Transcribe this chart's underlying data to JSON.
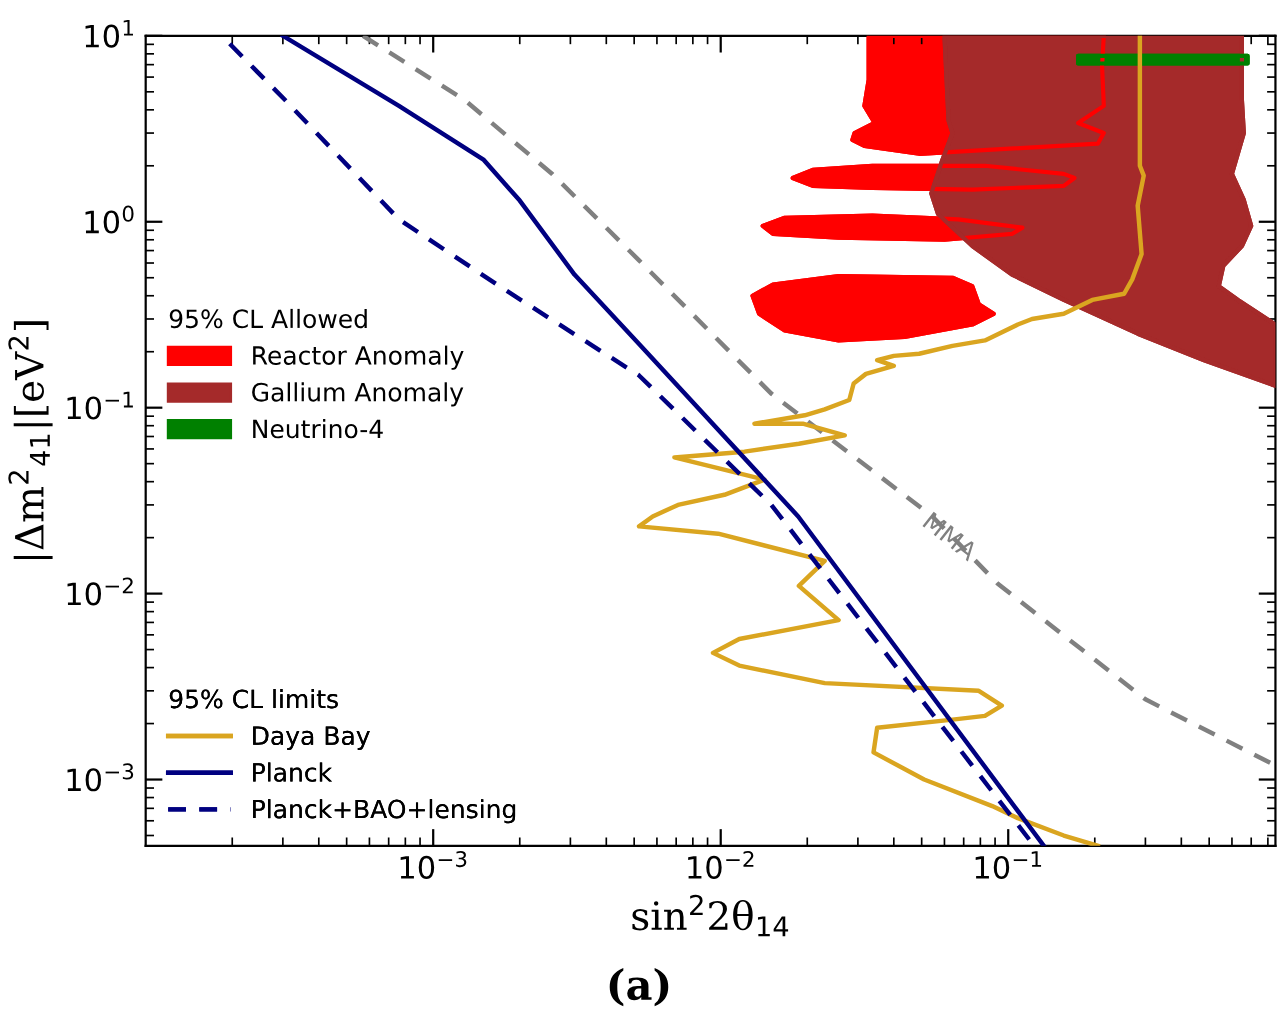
{
  "chart_data": {
    "type": "line",
    "xlabel": "sin$^{2}$2θ$_{14}$",
    "ylabel": "|Δm$^{2}$$_{41}$|[eV$^{2}$]",
    "log": "xy",
    "xlim": [
      0.0001,
      0.85
    ],
    "ylim": [
      0.00044,
      10
    ],
    "xticks": [
      {
        "value": 0.001,
        "label": "10$^{−3}$"
      },
      {
        "value": 0.01,
        "label": "10$^{−2}$"
      },
      {
        "value": 0.1,
        "label": "10$^{−1}$"
      }
    ],
    "yticks": [
      {
        "value": 0.001,
        "label": "10$^{−3}$"
      },
      {
        "value": 0.01,
        "label": "10$^{−2}$"
      },
      {
        "value": 0.1,
        "label": "10$^{−1}$"
      },
      {
        "value": 1,
        "label": "10$^{0}$"
      },
      {
        "value": 10,
        "label": "10$^{1}$"
      }
    ],
    "grid": false,
    "legend": "left",
    "legend_title": [
      "95% CL Allowed",
      "95% CL limits"
    ],
    "series": [
      {
        "name": "Reactor Anomaly",
        "type": "area",
        "color": "#ff0000",
        "x": [
          0.0327,
          0.0327,
          0.0316,
          0.0343,
          0.0292,
          0.0287,
          0.0316,
          0.049,
          0.205,
          0.215,
          0.175,
          0.215,
          0.212,
          0.215,
          null,
          0.0178,
          0.0209,
          0.0337,
          0.083,
          0.156,
          0.17,
          0.156,
          0.075,
          0.0337,
          0.0209,
          null,
          0.014,
          0.0167,
          0.0337,
          0.067,
          0.112,
          0.103,
          0.06,
          0.0257,
          0.0152,
          null,
          0.0129,
          0.0152,
          0.0257,
          0.064,
          0.075,
          0.079,
          0.089,
          0.075,
          0.0436,
          0.0257,
          0.0167,
          0.0136
        ],
        "values": [
          10,
          5.8,
          4.2,
          3.4,
          3.0,
          2.76,
          2.56,
          2.32,
          2.63,
          3.0,
          3.4,
          4.2,
          6.9,
          10,
          null,
          1.72,
          1.9,
          2.0,
          2.0,
          1.81,
          1.72,
          1.56,
          1.49,
          1.52,
          1.56,
          null,
          0.95,
          1.05,
          1.08,
          1.03,
          0.93,
          0.86,
          0.8,
          0.82,
          0.86,
          null,
          0.4,
          0.46,
          0.51,
          0.5,
          0.45,
          0.36,
          0.32,
          0.28,
          0.24,
          0.23,
          0.26,
          0.32
        ]
      },
      {
        "name": "Gallium Anomaly",
        "type": "area",
        "color": "#a52a2a",
        "x": [
          0.06,
          0.062,
          0.064,
          0.059,
          0.054,
          0.057,
          0.075,
          0.103,
          0.156,
          0.282,
          0.48,
          0.85,
          0.85,
          0.63,
          0.54,
          0.56,
          0.65,
          0.7,
          0.66,
          0.6,
          0.66,
          0.65,
          0.65
        ],
        "values": [
          10,
          3.5,
          3.0,
          2.15,
          1.42,
          1.1,
          0.74,
          0.52,
          0.38,
          0.25,
          0.18,
          0.131,
          0.28,
          0.38,
          0.45,
          0.58,
          0.74,
          0.95,
          1.31,
          1.81,
          3.0,
          4.5,
          10
        ]
      },
      {
        "name": "Neutrino-4",
        "type": "area",
        "color": "#008000",
        "x": [
          0.175,
          0.68,
          0.68,
          0.175
        ],
        "values": [
          7.1,
          7.1,
          7.8,
          7.8
        ]
      },
      {
        "type": "line",
        "color": "#808080",
        "line_style": "dashed",
        "x": [
          0.00057,
          0.00129,
          0.0026,
          0.0052,
          0.015,
          0.0545,
          0.092,
          0.3,
          0.85
        ],
        "values": [
          10,
          4.5,
          1.8,
          0.62,
          0.119,
          0.026,
          0.0113,
          0.0027,
          0.00119
        ]
      },
      {
        "name": "Daya Bay",
        "type": "line",
        "color": "#daa520",
        "line_style": "solid",
        "x": [
          0.287,
          0.287,
          0.296,
          0.282,
          0.291,
          0.27,
          0.253,
          0.196,
          0.156,
          0.121,
          0.108,
          0.083,
          0.064,
          0.049,
          0.04,
          0.035,
          0.04,
          0.032,
          0.029,
          0.028,
          0.023,
          0.0196,
          0.0131,
          0.0193,
          0.027,
          0.0187,
          0.0121,
          0.0069,
          0.0142,
          0.0103,
          0.0071,
          0.0058,
          0.0052,
          0.0098,
          0.023,
          0.0187,
          0.0257,
          0.0116,
          0.0094,
          0.0116,
          0.023,
          0.079,
          0.095,
          0.083,
          0.064,
          0.035,
          0.034,
          0.051,
          0.088,
          0.108,
          0.156,
          0.205
        ],
        "values": [
          10,
          2.0,
          1.77,
          1.22,
          0.67,
          0.49,
          0.41,
          0.38,
          0.32,
          0.3,
          0.28,
          0.23,
          0.215,
          0.195,
          0.19,
          0.18,
          0.168,
          0.152,
          0.135,
          0.11,
          0.098,
          0.091,
          0.082,
          0.082,
          0.071,
          0.064,
          0.058,
          0.054,
          0.041,
          0.034,
          0.03,
          0.026,
          0.023,
          0.021,
          0.015,
          0.011,
          0.0072,
          0.0057,
          0.0048,
          0.0041,
          0.0033,
          0.003,
          0.0025,
          0.0022,
          0.0021,
          0.0019,
          0.0014,
          0.001,
          0.00072,
          0.00062,
          0.0005,
          0.00044
        ]
      },
      {
        "name": "Planck",
        "type": "line",
        "color": "#000080",
        "line_style": "solid",
        "x": [
          0.0003,
          0.00076,
          0.0015,
          0.002,
          0.0031,
          0.0052,
          0.0186,
          0.133
        ],
        "values": [
          10,
          4.2,
          2.15,
          1.3,
          0.52,
          0.22,
          0.026,
          0.00044
        ]
      },
      {
        "name": "Planck+BAO+lensing",
        "type": "line",
        "color": "#000080",
        "line_style": "dashed",
        "x": [
          0.000196,
          0.000306,
          0.00076,
          0.0017,
          0.0052,
          0.015,
          0.123
        ],
        "values": [
          9.06,
          4.5,
          1.03,
          0.45,
          0.149,
          0.03,
          0.00044
        ]
      }
    ],
    "annotations": [
      {
        "text": "MMA",
        "x": 0.062,
        "y": 0.02
      },
      "(a)"
    ]
  }
}
